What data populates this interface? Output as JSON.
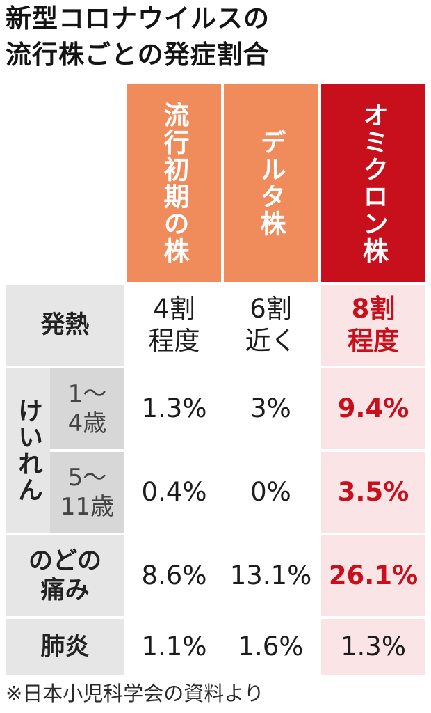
{
  "title": {
    "line1": "新型コロナウイルスの",
    "line2": "流行株ごとの発症割合"
  },
  "columns": [
    {
      "label": "流行初期の株",
      "color": "#f08b5c"
    },
    {
      "label": "デルタ株",
      "color": "#f08b5c"
    },
    {
      "label": "オミクロン株",
      "color": "#c8101c"
    }
  ],
  "rows": {
    "fever": {
      "label": "発熱",
      "values": [
        "4割\n程度",
        "6割\n近く",
        "8割\n程度"
      ]
    },
    "seizure": {
      "label": "けいれん",
      "groups": [
        {
          "age": "1〜\n4歳",
          "values": [
            "1.3%",
            "3%",
            "9.4%"
          ]
        },
        {
          "age": "5〜\n11歳",
          "values": [
            "0.4%",
            "0%",
            "3.5%"
          ]
        }
      ]
    },
    "sore_throat": {
      "label": "のどの\n痛み",
      "values": [
        "8.6%",
        "13.1%",
        "26.1%"
      ]
    },
    "pneumonia": {
      "label": "肺炎",
      "values": [
        "1.1%",
        "1.6%",
        "1.3%"
      ]
    }
  },
  "note": "※日本小児科学会の資料より",
  "colors": {
    "header_orange": "#f08b5c",
    "header_red": "#c8101c",
    "label_gray": "#e6e6e6",
    "sublabel_gray": "#d7d7d7",
    "highlight_pink": "#fbe4e5",
    "accent_text_red": "#c8101c"
  }
}
